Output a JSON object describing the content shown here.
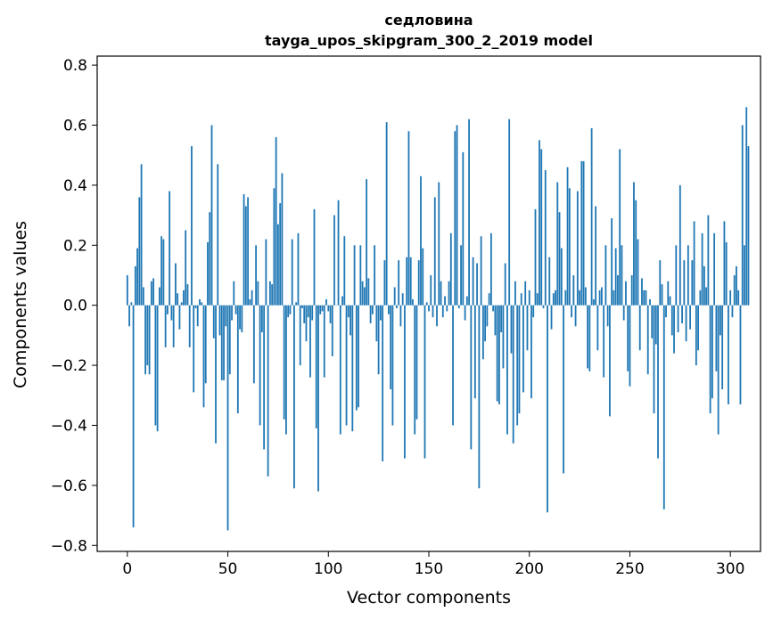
{
  "chart_data": {
    "type": "bar",
    "title_lines": [
      "седловина",
      "tayga_upos_skipgram_300_2_2019 model"
    ],
    "xlabel": "Vector components",
    "ylabel": "Components values",
    "xlim": [
      -15,
      315
    ],
    "ylim": [
      -0.82,
      0.83
    ],
    "xticks": [
      0,
      50,
      100,
      150,
      200,
      250,
      300
    ],
    "xtick_labels": [
      "0",
      "50",
      "100",
      "150",
      "200",
      "250",
      "300"
    ],
    "yticks": [
      -0.8,
      -0.6,
      -0.4,
      -0.2,
      0.0,
      0.2,
      0.4,
      0.6,
      0.8
    ],
    "ytick_labels": [
      "−0.8",
      "−0.6",
      "−0.4",
      "−0.2",
      "0.0",
      "0.2",
      "0.4",
      "0.6",
      "0.8"
    ],
    "grid": false,
    "bar_color": "#1f77b4",
    "values": [
      0.1,
      -0.07,
      0.01,
      -0.74,
      0.13,
      0.19,
      0.36,
      0.47,
      0.06,
      -0.23,
      -0.2,
      -0.23,
      0.08,
      0.09,
      -0.4,
      -0.42,
      0.06,
      0.23,
      0.22,
      -0.14,
      -0.03,
      0.38,
      -0.05,
      -0.14,
      0.14,
      0.04,
      -0.08,
      0.01,
      0.05,
      0.25,
      0.07,
      -0.14,
      0.53,
      -0.29,
      -0.01,
      -0.07,
      0.02,
      0.01,
      -0.34,
      -0.26,
      0.21,
      0.31,
      0.6,
      -0.11,
      -0.46,
      0.47,
      -0.1,
      -0.25,
      -0.25,
      -0.07,
      -0.75,
      -0.23,
      -0.05,
      0.08,
      -0.03,
      -0.36,
      -0.08,
      -0.09,
      0.37,
      0.33,
      0.36,
      0.02,
      0.05,
      -0.26,
      0.2,
      0.08,
      -0.4,
      -0.09,
      -0.48,
      0.22,
      -0.57,
      0.08,
      0.07,
      0.39,
      0.56,
      0.27,
      0.34,
      0.44,
      -0.38,
      -0.43,
      -0.04,
      -0.03,
      0.22,
      -0.61,
      0.01,
      0.24,
      -0.2,
      -0.01,
      -0.06,
      -0.12,
      -0.04,
      -0.24,
      -0.05,
      0.32,
      -0.41,
      -0.62,
      -0.03,
      -0.02,
      -0.24,
      0.02,
      -0.02,
      -0.06,
      -0.17,
      0.3,
      0.0,
      0.35,
      -0.43,
      0.03,
      0.23,
      -0.4,
      -0.04,
      -0.1,
      -0.42,
      0.2,
      -0.35,
      -0.34,
      0.2,
      0.08,
      0.06,
      0.42,
      0.09,
      -0.06,
      -0.03,
      0.2,
      -0.12,
      -0.23,
      -0.05,
      -0.52,
      0.15,
      0.61,
      -0.03,
      -0.28,
      -0.4,
      0.06,
      -0.01,
      0.15,
      -0.07,
      0.04,
      -0.51,
      0.16,
      0.58,
      0.16,
      0.02,
      -0.43,
      -0.38,
      0.15,
      0.43,
      0.19,
      -0.51,
      0.01,
      -0.02,
      0.1,
      -0.04,
      0.36,
      -0.07,
      0.41,
      0.08,
      -0.04,
      0.03,
      -0.02,
      0.08,
      0.24,
      -0.4,
      0.58,
      0.6,
      -0.01,
      0.2,
      0.51,
      -0.05,
      0.03,
      0.62,
      -0.48,
      0.16,
      -0.31,
      0.14,
      -0.61,
      0.23,
      -0.18,
      -0.12,
      -0.07,
      0.04,
      0.24,
      -0.02,
      -0.1,
      -0.32,
      -0.33,
      -0.09,
      -0.21,
      0.14,
      -0.43,
      0.62,
      -0.16,
      -0.46,
      0.08,
      -0.4,
      -0.36,
      0.04,
      -0.29,
      0.08,
      -0.15,
      0.05,
      -0.31,
      -0.04,
      0.32,
      0.04,
      0.55,
      0.52,
      -0.01,
      0.45,
      -0.69,
      0.16,
      -0.08,
      0.04,
      0.05,
      0.41,
      0.31,
      0.19,
      -0.56,
      0.05,
      0.46,
      0.39,
      -0.04,
      0.1,
      -0.07,
      0.38,
      0.05,
      0.48,
      0.48,
      0.06,
      -0.21,
      -0.22,
      0.59,
      0.02,
      0.33,
      -0.15,
      0.05,
      0.06,
      -0.24,
      0.2,
      -0.07,
      -0.37,
      0.29,
      0.05,
      0.19,
      0.1,
      0.52,
      0.2,
      -0.05,
      0.08,
      -0.22,
      -0.27,
      0.1,
      0.41,
      0.35,
      0.22,
      -0.15,
      0.09,
      0.05,
      0.05,
      -0.23,
      0.02,
      -0.11,
      -0.36,
      -0.13,
      -0.51,
      0.15,
      0.07,
      -0.68,
      -0.04,
      0.08,
      0.03,
      -0.1,
      -0.16,
      0.2,
      -0.09,
      0.4,
      -0.06,
      0.15,
      -0.12,
      0.2,
      -0.08,
      0.15,
      0.28,
      -0.2,
      -0.15,
      0.05,
      0.24,
      0.13,
      0.06,
      0.3,
      -0.36,
      -0.31,
      0.24,
      -0.22,
      -0.43,
      -0.1,
      -0.28,
      0.28,
      0.21,
      -0.33,
      0.05,
      -0.04,
      0.1,
      0.13,
      0.05,
      -0.33,
      0.6,
      0.2,
      0.66,
      0.53
    ]
  }
}
